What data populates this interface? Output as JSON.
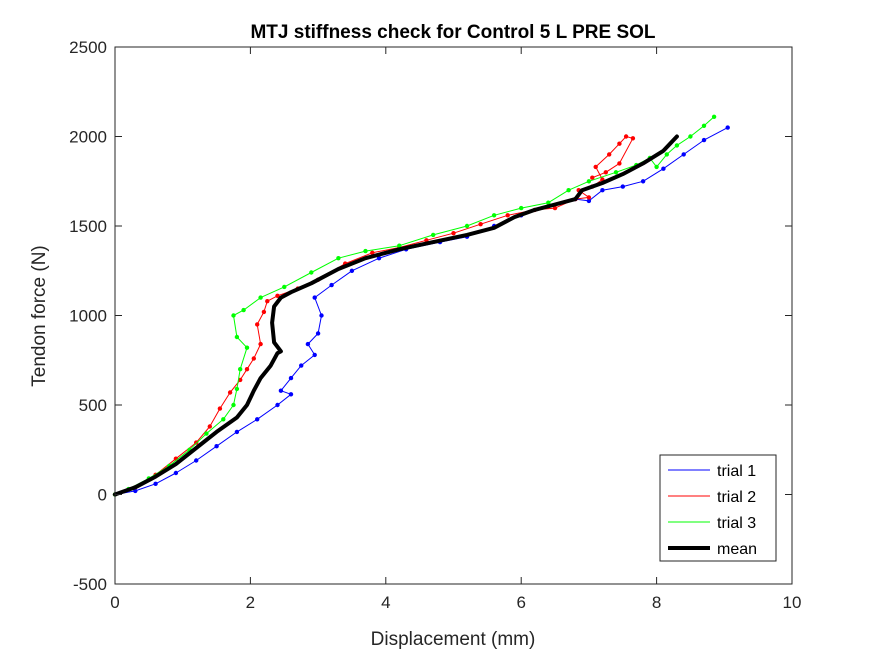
{
  "chart_data": {
    "type": "line",
    "title": "MTJ stiffness check for Control 5 L PRE SOL",
    "xlabel": "Displacement (mm)",
    "ylabel": "Tendon force (N)",
    "xlim": [
      0,
      10
    ],
    "ylim": [
      -500,
      2500
    ],
    "xticks": [
      "0",
      "2",
      "4",
      "6",
      "8",
      "10"
    ],
    "yticks": [
      "-500",
      "0",
      "500",
      "1000",
      "1500",
      "2000",
      "2500"
    ],
    "grid": false,
    "legend_position": "bottom-right",
    "series": [
      {
        "name": "trial 1",
        "color": "#0000ff",
        "markers": true,
        "x": [
          0,
          0.3,
          0.6,
          0.9,
          1.2,
          1.5,
          1.8,
          2.1,
          2.4,
          2.6,
          2.45,
          2.6,
          2.75,
          2.95,
          2.85,
          3.0,
          3.05,
          2.95,
          3.2,
          3.5,
          3.9,
          4.3,
          4.8,
          5.2,
          5.6,
          6.0,
          6.4,
          6.8,
          7.0,
          7.2,
          7.5,
          7.8,
          8.1,
          8.4,
          8.7,
          9.05
        ],
        "y": [
          0,
          20,
          60,
          120,
          190,
          270,
          350,
          420,
          500,
          560,
          580,
          650,
          720,
          780,
          840,
          900,
          1000,
          1100,
          1170,
          1250,
          1320,
          1370,
          1410,
          1440,
          1500,
          1560,
          1610,
          1650,
          1640,
          1700,
          1720,
          1750,
          1820,
          1900,
          1980,
          2050
        ]
      },
      {
        "name": "trial 2",
        "color": "#ff0000",
        "markers": true,
        "x": [
          0,
          0.3,
          0.6,
          0.9,
          1.2,
          1.4,
          1.55,
          1.7,
          1.85,
          1.95,
          2.05,
          2.15,
          2.1,
          2.2,
          2.25,
          2.4,
          2.7,
          3.0,
          3.4,
          3.8,
          4.2,
          4.6,
          5.0,
          5.4,
          5.8,
          6.2,
          6.5,
          6.8,
          7.0,
          6.85,
          7.05,
          7.2,
          7.1,
          7.3,
          7.45,
          7.55,
          7.65,
          7.45,
          7.25,
          7.05
        ],
        "y": [
          0,
          40,
          110,
          200,
          290,
          380,
          480,
          570,
          640,
          700,
          760,
          840,
          950,
          1020,
          1080,
          1110,
          1150,
          1200,
          1290,
          1350,
          1380,
          1420,
          1460,
          1510,
          1560,
          1590,
          1600,
          1650,
          1660,
          1700,
          1720,
          1760,
          1830,
          1900,
          1960,
          2000,
          1990,
          1850,
          1800,
          1770
        ]
      },
      {
        "name": "trial 3",
        "color": "#00ff00",
        "markers": true,
        "x": [
          0,
          0.2,
          0.5,
          0.8,
          1.1,
          1.35,
          1.6,
          1.75,
          1.8,
          1.85,
          1.95,
          1.8,
          1.75,
          1.9,
          2.15,
          2.5,
          2.9,
          3.3,
          3.7,
          4.2,
          4.7,
          5.2,
          5.6,
          6.0,
          6.4,
          6.7,
          7.0,
          7.4,
          7.7,
          7.9,
          8.0,
          8.15,
          8.3,
          8.5,
          8.7,
          8.85
        ],
        "y": [
          0,
          30,
          90,
          160,
          250,
          340,
          420,
          500,
          590,
          700,
          820,
          880,
          1000,
          1030,
          1100,
          1160,
          1240,
          1320,
          1360,
          1390,
          1450,
          1500,
          1560,
          1600,
          1630,
          1700,
          1750,
          1800,
          1840,
          1880,
          1830,
          1900,
          1950,
          2000,
          2060,
          2110
        ]
      },
      {
        "name": "mean",
        "color": "#000000",
        "markers": false,
        "x": [
          0,
          0.3,
          0.6,
          0.9,
          1.2,
          1.5,
          1.8,
          1.95,
          2.05,
          2.15,
          2.3,
          2.4,
          2.45,
          2.35,
          2.32,
          2.35,
          2.45,
          2.6,
          2.9,
          3.3,
          3.7,
          4.2,
          4.7,
          5.2,
          5.6,
          5.9,
          6.2,
          6.5,
          6.8,
          6.9,
          7.2,
          7.5,
          7.8,
          8.1,
          8.3
        ],
        "y": [
          0,
          40,
          100,
          170,
          260,
          350,
          430,
          500,
          580,
          650,
          720,
          790,
          800,
          850,
          960,
          1050,
          1100,
          1130,
          1180,
          1260,
          1320,
          1370,
          1410,
          1450,
          1490,
          1550,
          1590,
          1620,
          1650,
          1700,
          1740,
          1790,
          1850,
          1920,
          2000
        ]
      }
    ]
  }
}
